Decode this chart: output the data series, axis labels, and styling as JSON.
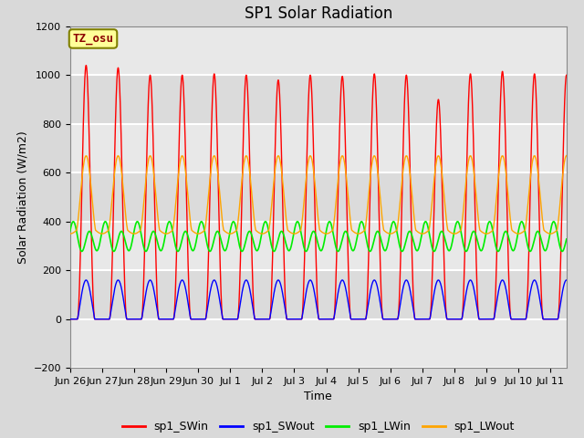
{
  "title": "SP1 Solar Radiation",
  "xlabel": "Time",
  "ylabel": "Solar Radiation (W/m2)",
  "ylim": [
    -200,
    1200
  ],
  "tz_label": "TZ_osu",
  "tick_labels": [
    "Jun 26",
    "Jun 27",
    "Jun 28",
    "Jun 29",
    "Jun 30",
    "Jul 1",
    "Jul 2",
    "Jul 3",
    "Jul 4",
    "Jul 5",
    "Jul 6",
    "Jul 7",
    "Jul 8",
    "Jul 9",
    "Jul 10",
    "Jul 11"
  ],
  "legend": [
    "sp1_SWin",
    "sp1_SWout",
    "sp1_LWin",
    "sp1_LWout"
  ],
  "line_colors": [
    "red",
    "blue",
    "#00ee00",
    "orange"
  ],
  "bg_color": "#d9d9d9",
  "plot_bg": "#e8e8e8",
  "grid_color": "#c8c8c8",
  "title_fontsize": 12,
  "label_fontsize": 9,
  "tick_fontsize": 8
}
